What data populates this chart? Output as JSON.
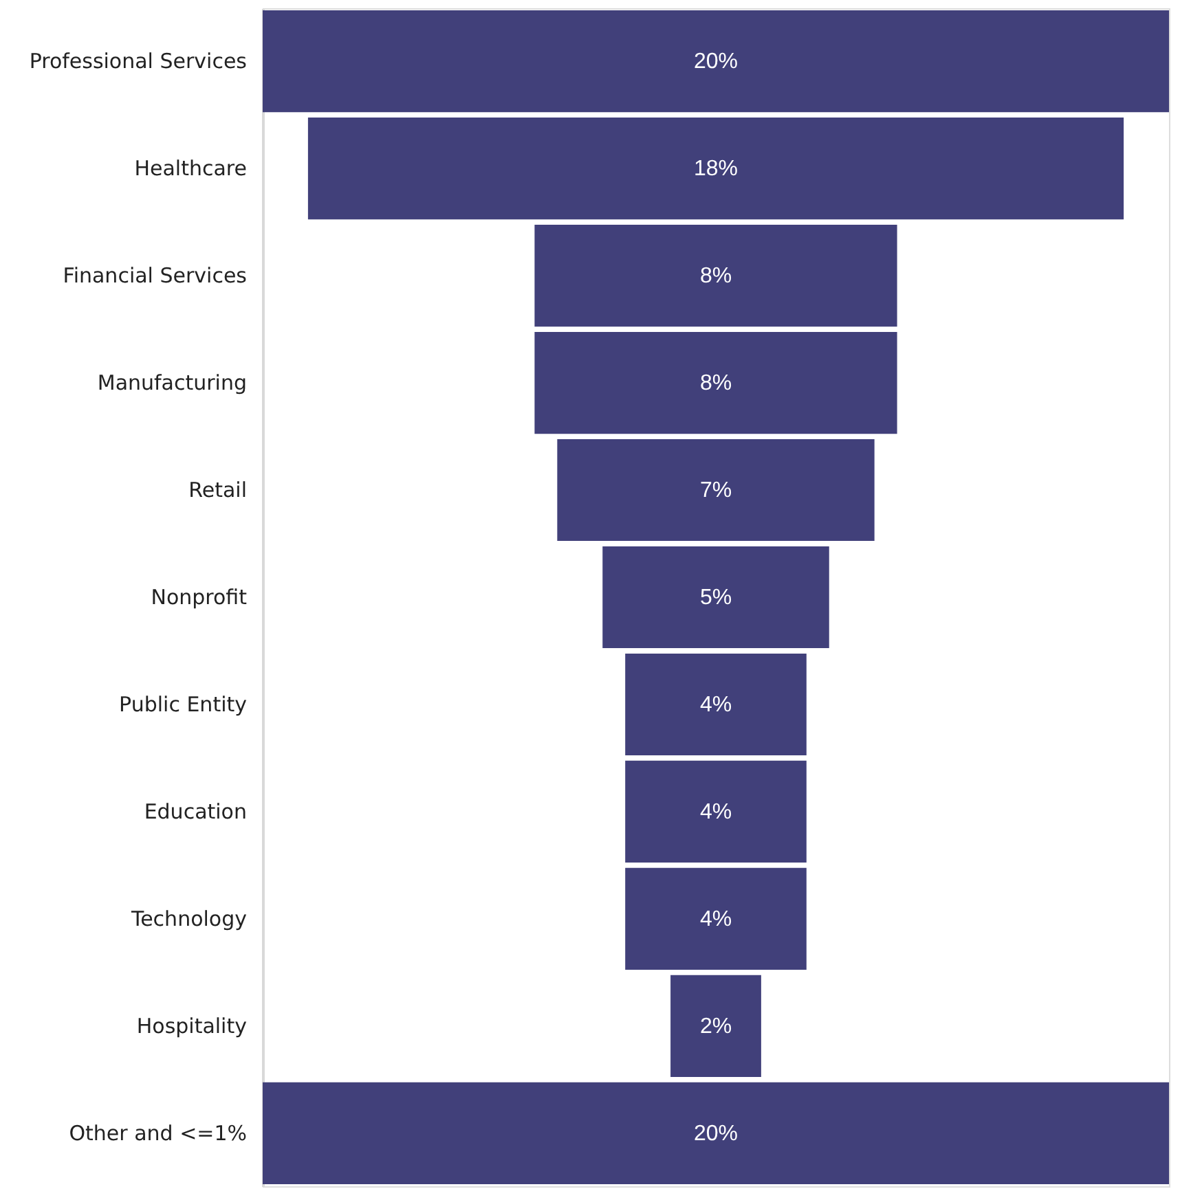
{
  "chart_data": {
    "type": "other",
    "categories": [
      "Professional Services",
      "Healthcare",
      "Financial Services",
      "Manufacturing",
      "Retail",
      "Nonprofit",
      "Public Entity",
      "Education",
      "Technology",
      "Hospitality",
      "Other and <=1%"
    ],
    "values": [
      20,
      18,
      8,
      8,
      7,
      5,
      4,
      4,
      4,
      2,
      20
    ],
    "value_labels": [
      "20%",
      "18%",
      "8%",
      "8%",
      "7%",
      "5%",
      "4%",
      "4%",
      "4%",
      "2%",
      "20%"
    ],
    "color": "#41407a"
  }
}
